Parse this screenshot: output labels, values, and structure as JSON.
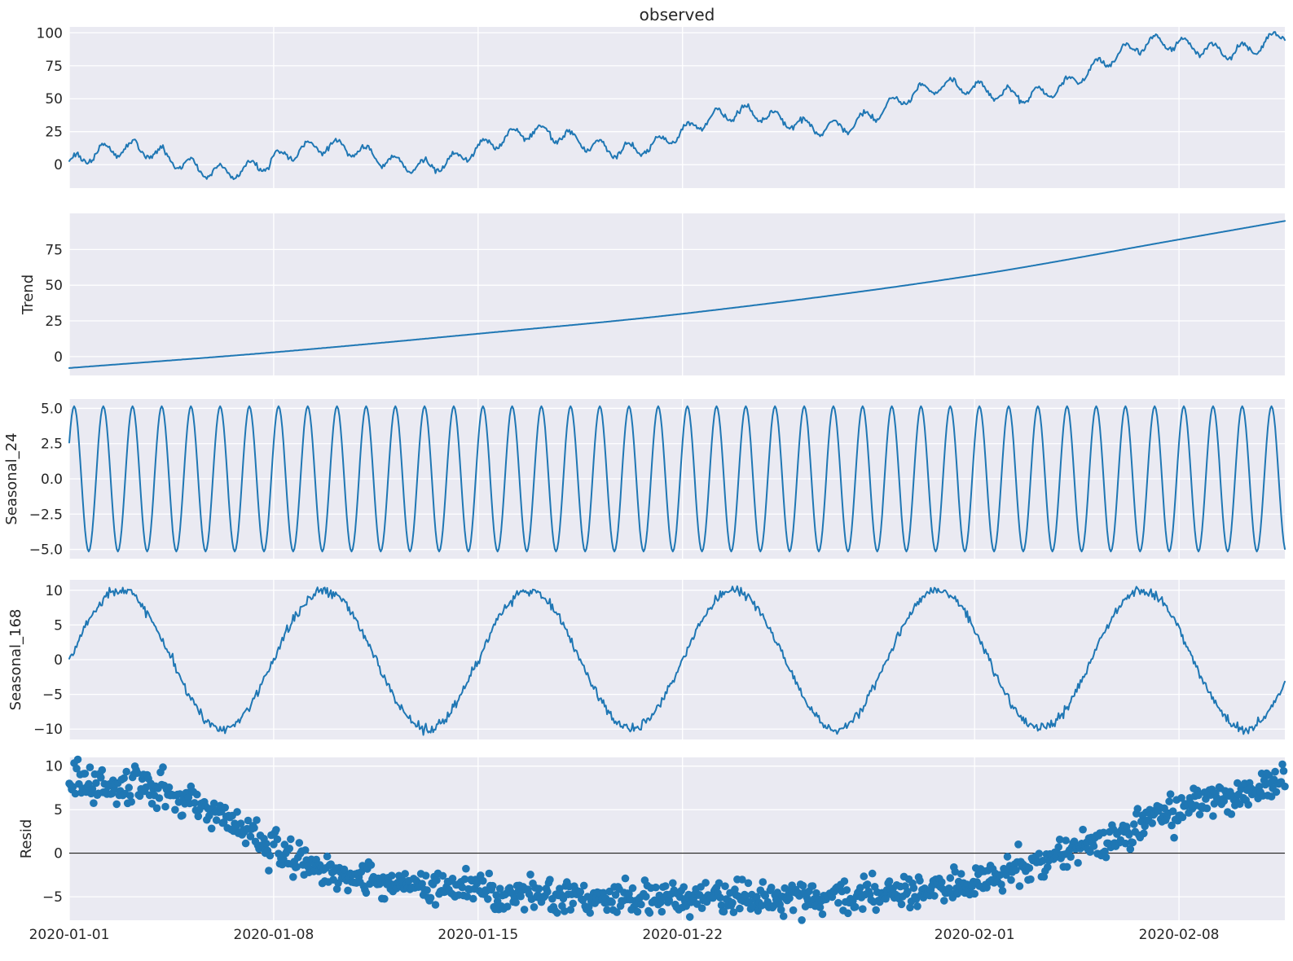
{
  "title": "observed",
  "colors": {
    "figure_background": "#ffffff",
    "panel_background": "#eaeaf2",
    "grid": "#ffffff",
    "line": "#1f77b4",
    "marker": "#1f77b4",
    "text": "#262626",
    "zero_line": "#000000"
  },
  "x_axis": {
    "unit": "hours",
    "n_points": 1000,
    "start": "2020-01-01 00:00",
    "tick_hours": [
      0,
      168,
      336,
      504,
      744,
      912
    ],
    "tick_labels": [
      "2020-01-01",
      "2020-01-08",
      "2020-01-15",
      "2020-01-22",
      "2020-02-01",
      "2020-02-08"
    ]
  },
  "chart_data": {
    "type": "line",
    "subtype": "mstl-decomposition-multi-panel",
    "description": "Seasonal-trend decomposition of an hourly series: observed = Trend + Seasonal_24 + Seasonal_168 + Resid",
    "grid": true,
    "legend": false,
    "panels": [
      {
        "id": "observed",
        "panel_title": "observed",
        "plot_type": "line",
        "ylabel": "",
        "ytick_values": [
          0,
          25,
          50,
          75,
          100
        ],
        "ytick_labels": [
          "0",
          "25",
          "50",
          "75",
          "100"
        ],
        "ylim": [
          -17.8,
          104.5
        ],
        "model": {
          "kind": "sum",
          "of": [
            "trend",
            "seasonal_24",
            "seasonal_168",
            "resid"
          ]
        },
        "approx_start_value": 5,
        "approx_min": -12,
        "approx_max": 98
      },
      {
        "id": "trend",
        "plot_type": "line",
        "ylabel": "Trend",
        "ytick_values": [
          0,
          25,
          50,
          75
        ],
        "ytick_labels": [
          "0",
          "25",
          "50",
          "75"
        ],
        "ylim": [
          -13.2,
          100.3
        ],
        "model": {
          "kind": "points",
          "points": [
            [
              0,
              -8
            ],
            [
              168,
              3
            ],
            [
              336,
              16
            ],
            [
              504,
              30
            ],
            [
              744,
              57
            ],
            [
              912,
              82
            ],
            [
              999,
              95
            ]
          ],
          "noise_sd": 0
        }
      },
      {
        "id": "seasonal_24",
        "plot_type": "line",
        "ylabel": "Seasonal_24",
        "ytick_values": [
          5,
          2.5,
          0,
          -2.5,
          -5
        ],
        "ytick_labels": [
          "5.0",
          "2.5",
          "0.0",
          "−2.5",
          "−5.0"
        ],
        "ylim": [
          -5.66,
          5.66
        ],
        "model": {
          "kind": "sine",
          "amplitude": 5.15,
          "period_hours": 24,
          "phase_hours": 2,
          "noise_sd": 0
        }
      },
      {
        "id": "seasonal_168",
        "plot_type": "line",
        "ylabel": "Seasonal_168",
        "ytick_values": [
          10,
          5,
          0,
          -5,
          -10
        ],
        "ytick_labels": [
          "10",
          "5",
          "0",
          "−5",
          "−10"
        ],
        "ylim": [
          -11.5,
          11.5
        ],
        "model": {
          "kind": "sine",
          "amplitude": 10,
          "period_hours": 168,
          "phase_hours": 0,
          "noise_sd": 0.35
        }
      },
      {
        "id": "resid",
        "plot_type": "scatter",
        "ylabel": "Resid",
        "ytick_values": [
          10,
          5,
          0,
          -5
        ],
        "ytick_labels": [
          "10",
          "5",
          "0",
          "−5"
        ],
        "ylim": [
          -7.7,
          11.0
        ],
        "zero_line": true,
        "model": {
          "kind": "points",
          "points": [
            [
              0,
              8.3
            ],
            [
              100,
              6.2
            ],
            [
              200,
              -1.5
            ],
            [
              300,
              -3.8
            ],
            [
              400,
              -4.8
            ],
            [
              500,
              -5.3
            ],
            [
              600,
              -5.0
            ],
            [
              700,
              -4.4
            ],
            [
              780,
              -2.0
            ],
            [
              850,
              1.5
            ],
            [
              912,
              4.8
            ],
            [
              960,
              7.0
            ],
            [
              999,
              8.6
            ]
          ],
          "noise_sd": 0.95
        }
      }
    ]
  }
}
